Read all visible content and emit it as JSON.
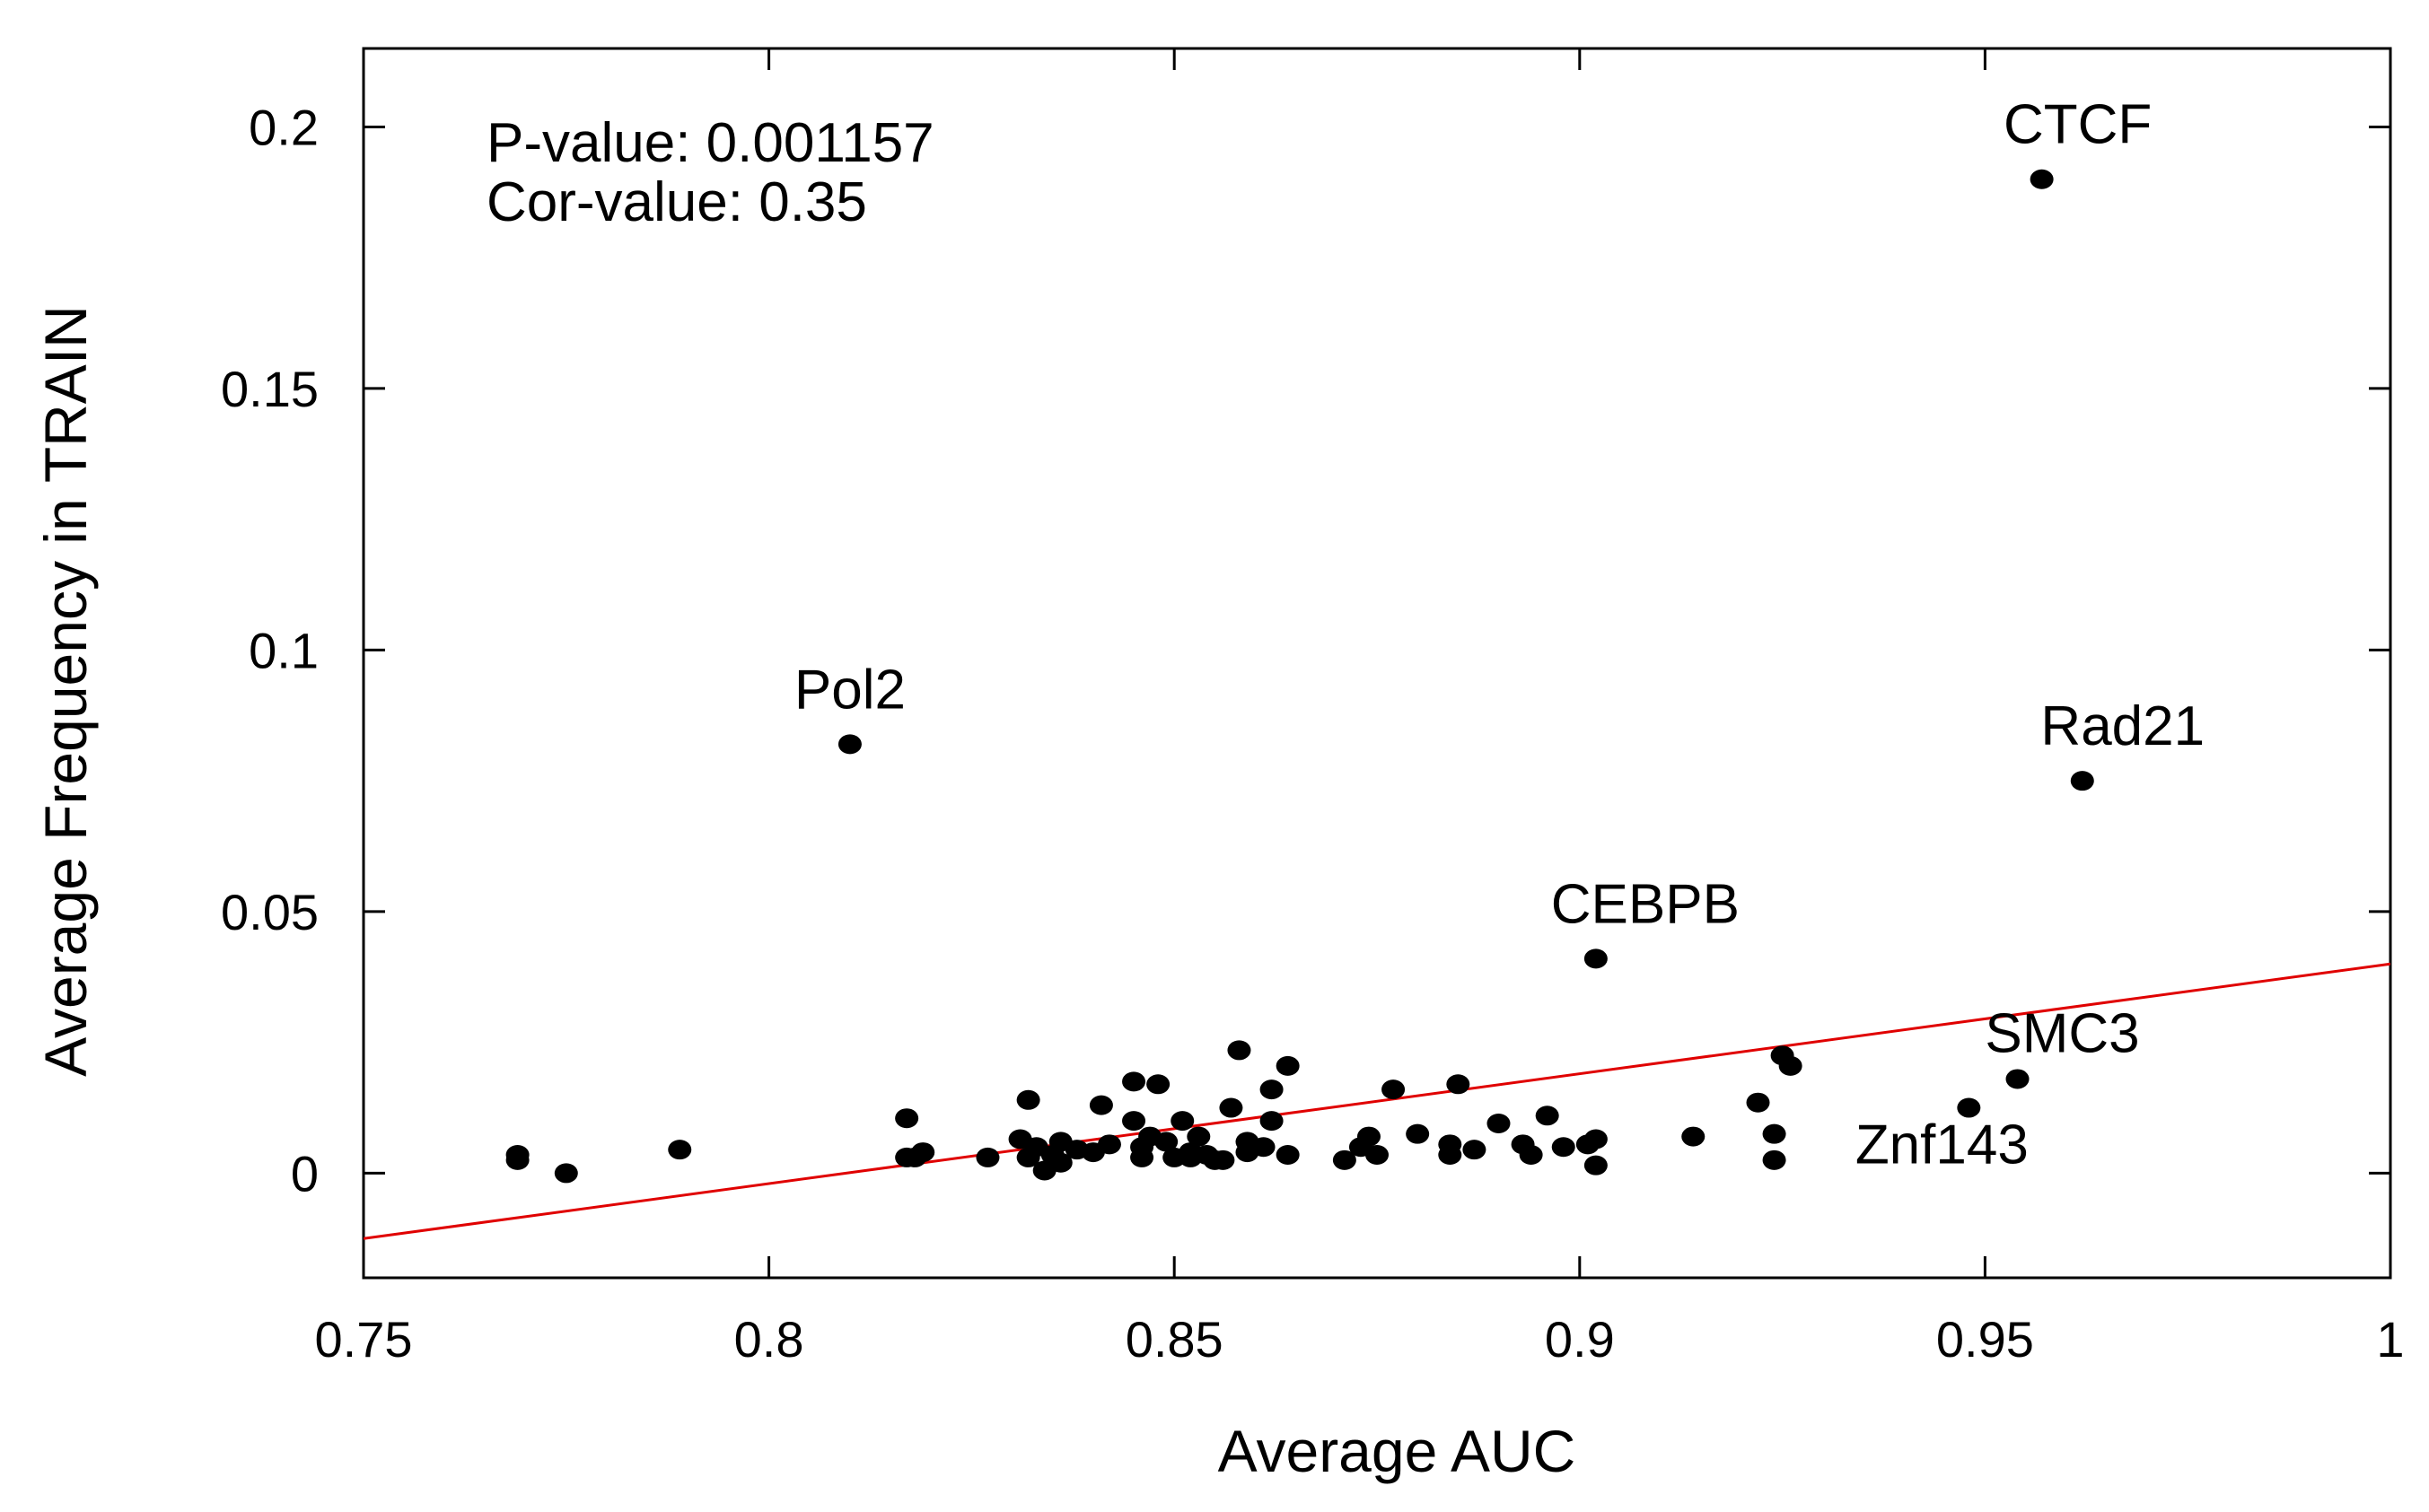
{
  "chart_data": {
    "type": "scatter",
    "title": "",
    "xlabel": "Average AUC",
    "ylabel": "Average Frequency in TRAIN",
    "xlim": [
      0.75,
      1.0
    ],
    "ylim": [
      -0.02,
      0.215
    ],
    "x_ticks": [
      0.75,
      0.8,
      0.85,
      0.9,
      0.95,
      1.0
    ],
    "x_tick_labels": [
      "0.75",
      "0.8",
      "0.85",
      "0.9",
      "0.95",
      "1"
    ],
    "y_ticks": [
      0,
      0.05,
      0.1,
      0.15,
      0.2
    ],
    "y_tick_labels": [
      "0",
      "0.05",
      "0.1",
      "0.15",
      "0.2"
    ],
    "grid": false,
    "annotations": [
      "P-value: 0.001157",
      "Cor-value: 0.35"
    ],
    "regression_line": {
      "color": "#e00000",
      "points": [
        [
          0.75,
          -0.0125
        ],
        [
          1.0,
          0.04
        ]
      ]
    },
    "labeled_points": [
      {
        "name": "CTCF",
        "x": 0.957,
        "y": 0.19
      },
      {
        "name": "Pol2",
        "x": 0.81,
        "y": 0.082
      },
      {
        "name": "Rad21",
        "x": 0.962,
        "y": 0.075
      },
      {
        "name": "CEBPB",
        "x": 0.902,
        "y": 0.041
      },
      {
        "name": "SMC3",
        "x": 0.954,
        "y": 0.018
      },
      {
        "name": "Znf143",
        "x": 0.948,
        "y": 0.0125
      }
    ],
    "points": [
      [
        0.769,
        0.0035
      ],
      [
        0.769,
        0.0025
      ],
      [
        0.775,
        0.0
      ],
      [
        0.789,
        0.0045
      ],
      [
        0.817,
        0.0105
      ],
      [
        0.817,
        0.003
      ],
      [
        0.818,
        0.003
      ],
      [
        0.819,
        0.004
      ],
      [
        0.827,
        0.003
      ],
      [
        0.831,
        0.0065
      ],
      [
        0.832,
        0.003
      ],
      [
        0.832,
        0.014
      ],
      [
        0.833,
        0.005
      ],
      [
        0.834,
        0.0005
      ],
      [
        0.835,
        0.0035
      ],
      [
        0.836,
        0.006
      ],
      [
        0.836,
        0.002
      ],
      [
        0.838,
        0.0045
      ],
      [
        0.84,
        0.004
      ],
      [
        0.841,
        0.013
      ],
      [
        0.842,
        0.0055
      ],
      [
        0.845,
        0.0175
      ],
      [
        0.845,
        0.01
      ],
      [
        0.846,
        0.005
      ],
      [
        0.846,
        0.003
      ],
      [
        0.847,
        0.007
      ],
      [
        0.848,
        0.017
      ],
      [
        0.849,
        0.006
      ],
      [
        0.85,
        0.003
      ],
      [
        0.851,
        0.01
      ],
      [
        0.852,
        0.003
      ],
      [
        0.852,
        0.004
      ],
      [
        0.853,
        0.007
      ],
      [
        0.854,
        0.0035
      ],
      [
        0.855,
        0.0025
      ],
      [
        0.856,
        0.0025
      ],
      [
        0.857,
        0.0125
      ],
      [
        0.858,
        0.0235
      ],
      [
        0.859,
        0.006
      ],
      [
        0.859,
        0.004
      ],
      [
        0.861,
        0.005
      ],
      [
        0.862,
        0.016
      ],
      [
        0.862,
        0.01
      ],
      [
        0.864,
        0.0205
      ],
      [
        0.864,
        0.0035
      ],
      [
        0.871,
        0.0025
      ],
      [
        0.873,
        0.005
      ],
      [
        0.874,
        0.007
      ],
      [
        0.875,
        0.0035
      ],
      [
        0.877,
        0.016
      ],
      [
        0.88,
        0.0075
      ],
      [
        0.884,
        0.0035
      ],
      [
        0.884,
        0.0055
      ],
      [
        0.885,
        0.017
      ],
      [
        0.887,
        0.0045
      ],
      [
        0.89,
        0.0095
      ],
      [
        0.893,
        0.0055
      ],
      [
        0.894,
        0.0035
      ],
      [
        0.896,
        0.011
      ],
      [
        0.898,
        0.005
      ],
      [
        0.901,
        0.0055
      ],
      [
        0.902,
        0.0065
      ],
      [
        0.902,
        0.0015
      ],
      [
        0.914,
        0.007
      ],
      [
        0.922,
        0.0135
      ],
      [
        0.924,
        0.0075
      ],
      [
        0.924,
        0.0025
      ],
      [
        0.925,
        0.0225
      ],
      [
        0.926,
        0.0205
      ]
    ]
  }
}
